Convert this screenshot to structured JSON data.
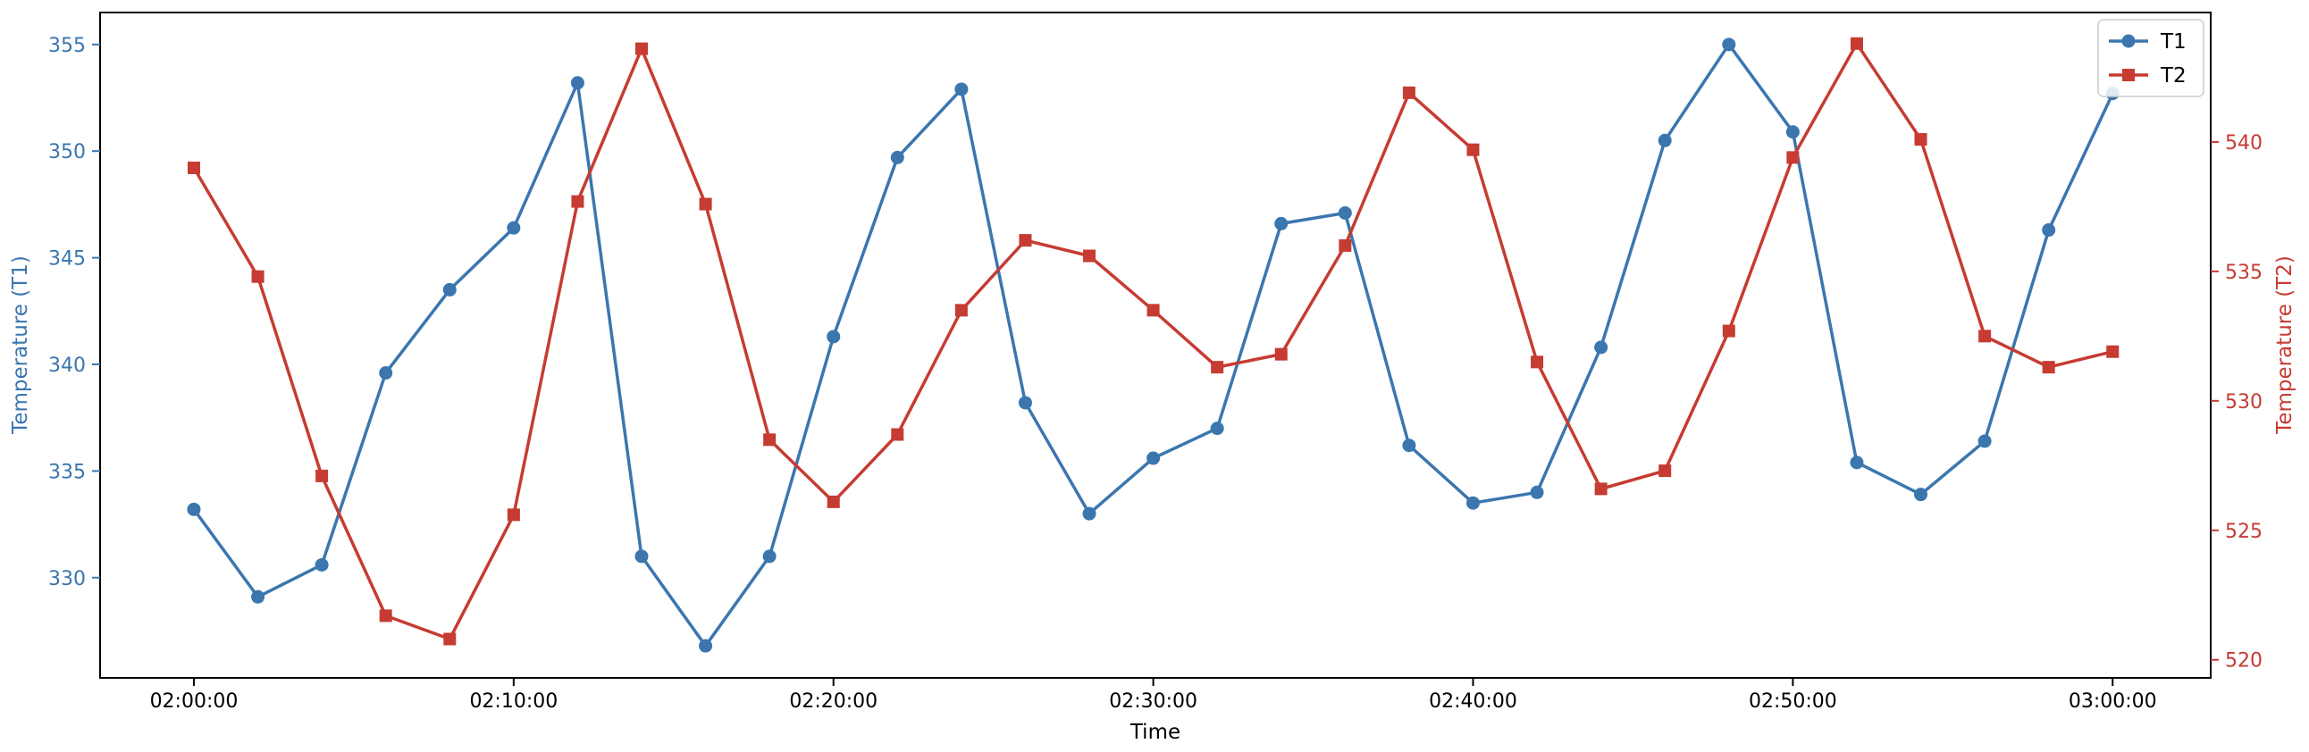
{
  "chart_data": {
    "type": "line",
    "title": "",
    "xlabel": "Time",
    "ylabel_left": "Temperature (T1)",
    "ylabel_right": "Temperature (T2)",
    "x_ticks": [
      "02:00:00",
      "02:10:00",
      "02:20:00",
      "02:30:00",
      "02:40:00",
      "02:50:00",
      "03:00:00"
    ],
    "x": [
      "02:00:00",
      "02:02:00",
      "02:04:00",
      "02:06:00",
      "02:08:00",
      "02:10:00",
      "02:12:00",
      "02:14:00",
      "02:16:00",
      "02:18:00",
      "02:20:00",
      "02:22:00",
      "02:24:00",
      "02:26:00",
      "02:28:00",
      "02:30:00",
      "02:32:00",
      "02:34:00",
      "02:36:00",
      "02:38:00",
      "02:40:00",
      "02:42:00",
      "02:44:00",
      "02:46:00",
      "02:48:00",
      "02:50:00",
      "02:52:00",
      "02:54:00",
      "02:56:00",
      "02:58:00",
      "03:00:00"
    ],
    "xlim": [
      "01:57:04",
      "03:03:04"
    ],
    "left_axis": {
      "ylim": [
        325.3,
        356.5
      ],
      "ticks": [
        330,
        335,
        340,
        345,
        350,
        355
      ],
      "color": "#3b76af"
    },
    "right_axis": {
      "ylim": [
        519.3,
        545.0
      ],
      "ticks": [
        520,
        525,
        530,
        535,
        540
      ],
      "color": "#c63b32"
    },
    "series": [
      {
        "name": "T1",
        "axis": "left",
        "color": "#3b76af",
        "marker": "circle",
        "values": [
          333.2,
          329.1,
          330.6,
          339.6,
          343.5,
          346.4,
          353.2,
          331.0,
          326.8,
          331.0,
          341.3,
          349.7,
          352.9,
          338.2,
          333.0,
          335.6,
          337.0,
          346.6,
          347.1,
          336.2,
          333.5,
          334.0,
          340.8,
          350.5,
          355.0,
          350.9,
          335.4,
          333.9,
          336.4,
          346.3,
          352.7
        ]
      },
      {
        "name": "T2",
        "axis": "right",
        "color": "#c63b32",
        "marker": "square",
        "values": [
          539.0,
          534.8,
          527.1,
          521.7,
          520.8,
          525.6,
          537.7,
          543.6,
          537.6,
          528.5,
          526.1,
          528.7,
          533.5,
          536.2,
          535.6,
          533.5,
          531.3,
          531.8,
          536.0,
          541.9,
          539.7,
          531.5,
          526.6,
          527.3,
          532.7,
          539.4,
          543.8,
          540.1,
          532.5,
          531.3,
          531.9
        ]
      }
    ],
    "legend": {
      "position": "top-right"
    },
    "grid": false
  }
}
